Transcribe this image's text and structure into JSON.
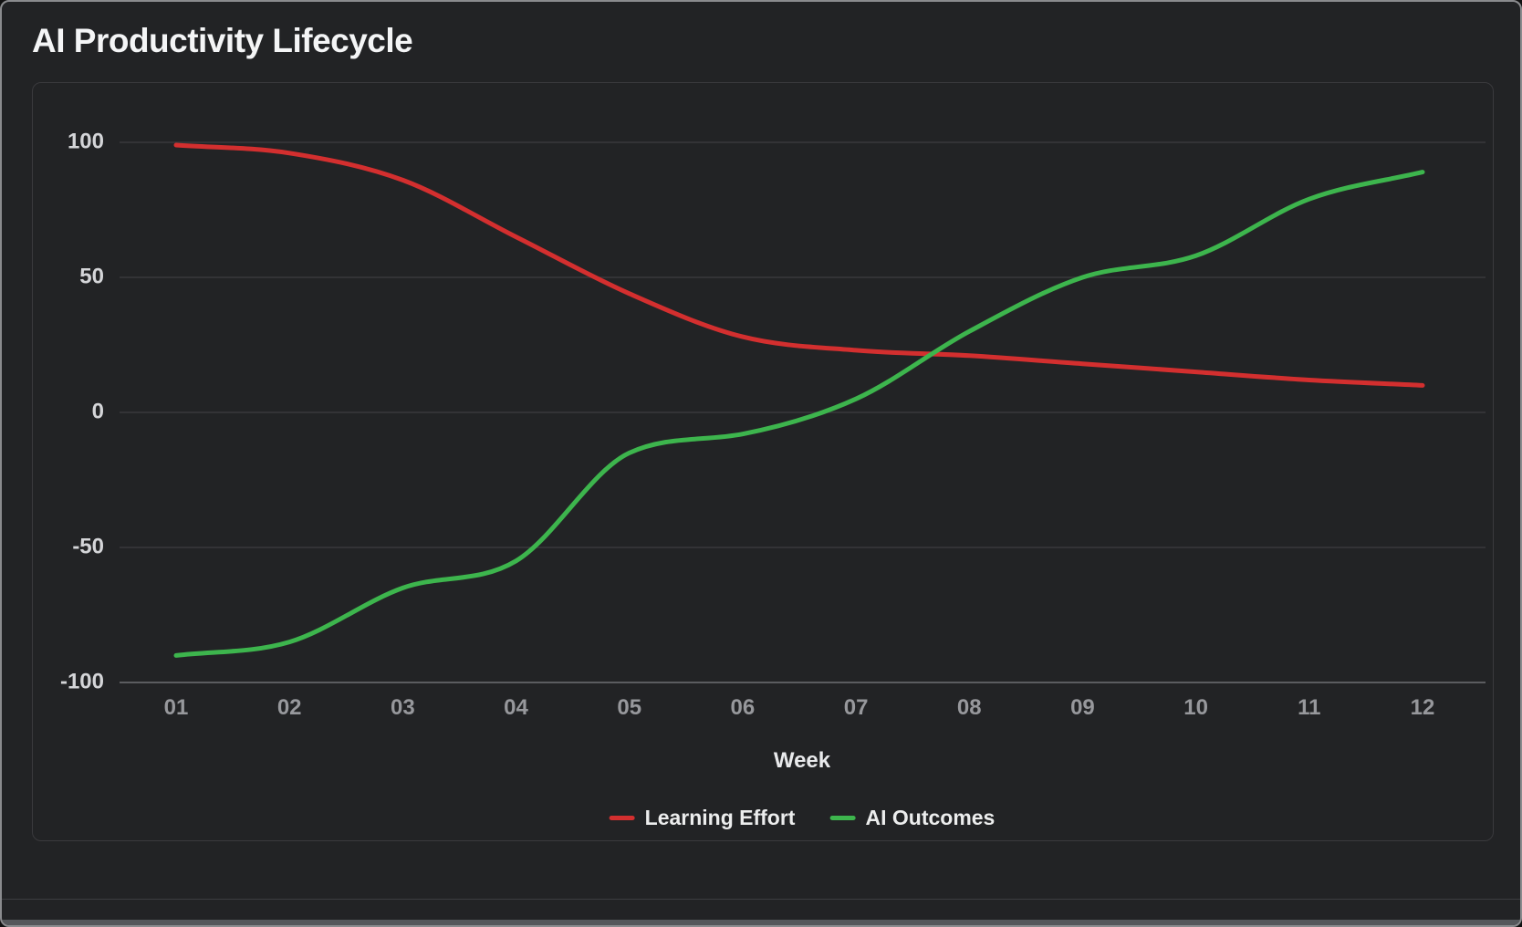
{
  "title": "AI Productivity Lifecycle",
  "colors": {
    "background": "#222325",
    "outer_border": "#8a8b8e",
    "card_border": "#3a3a3d",
    "grid": "#39393d",
    "axis_line": "#5b5c60",
    "xtick_text": "#97989c",
    "ytick_text": "#d4d5d8",
    "label_text": "#e9eaec",
    "title_text": "#f4f5f6",
    "learning_effort": "#d32f2f",
    "ai_outcomes": "#3db54d",
    "bottom_bar": "#55575b"
  },
  "chart_data": {
    "type": "line",
    "x": [
      1,
      2,
      3,
      4,
      5,
      6,
      7,
      8,
      9,
      10,
      11,
      12
    ],
    "xtick_labels": [
      "01",
      "02",
      "03",
      "04",
      "05",
      "06",
      "07",
      "08",
      "09",
      "10",
      "11",
      "12"
    ],
    "xlabel": "Week",
    "yticks": [
      100,
      50,
      0,
      -50,
      -100
    ],
    "ytick_labels": [
      "100",
      "50",
      "0",
      "-50",
      "-100"
    ],
    "ylim": [
      -100,
      100
    ],
    "grid": "horizontal",
    "line_smoothing": "monotone",
    "legend_position": "bottom",
    "series": [
      {
        "name": "Learning Effort",
        "color": "#d32f2f",
        "values": [
          99,
          96,
          86,
          65,
          44,
          28,
          23,
          21,
          18,
          15,
          12,
          10
        ]
      },
      {
        "name": "AI Outcomes",
        "color": "#3db54d",
        "values": [
          -90,
          -85,
          -65,
          -55,
          -15,
          -8,
          5,
          30,
          50,
          58,
          79,
          89
        ]
      }
    ]
  }
}
